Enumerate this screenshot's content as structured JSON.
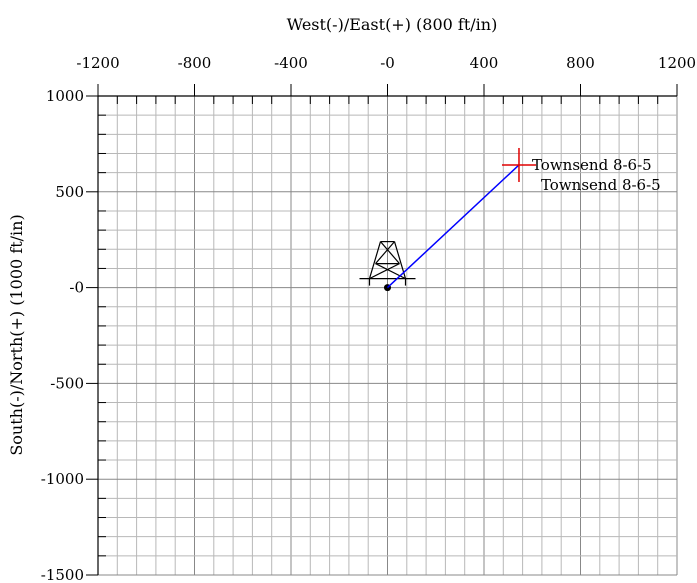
{
  "chart_data": {
    "type": "scatter",
    "title": "",
    "xlabel": "West(-)/East(+) (800 ft/in)",
    "ylabel": "South(-)/North(+) (1000 ft/in)",
    "xlim": [
      -1200,
      1200
    ],
    "ylim": [
      -1500,
      1000
    ],
    "x_ticks": [
      -1200,
      -800,
      -400,
      0,
      400,
      800,
      1200
    ],
    "x_tick_labels": [
      "-1200",
      "-800",
      "-400",
      "-0",
      "400",
      "800",
      "1200"
    ],
    "y_ticks": [
      1000,
      500,
      0,
      -500,
      -1000,
      -1500
    ],
    "y_tick_labels": [
      "1000",
      "500",
      "-0",
      "-500",
      "-1000",
      "-1500"
    ],
    "x_axis_position": "top",
    "grid": true,
    "minor_grid": true,
    "surface_location": {
      "x": 0,
      "y": 0
    },
    "wellpath": [
      {
        "x": 0,
        "y": 0
      },
      {
        "x": 545,
        "y": 640
      }
    ],
    "target": {
      "x": 545,
      "y": 640,
      "label": "Townsend 8-6-5"
    },
    "well_label": "Townsend 8-6-5",
    "colors": {
      "grid_minor": "#b8b8b8",
      "grid_major": "#888888",
      "wellpath": "#0000ff",
      "target": "#e00000",
      "axis": "#000000"
    }
  }
}
